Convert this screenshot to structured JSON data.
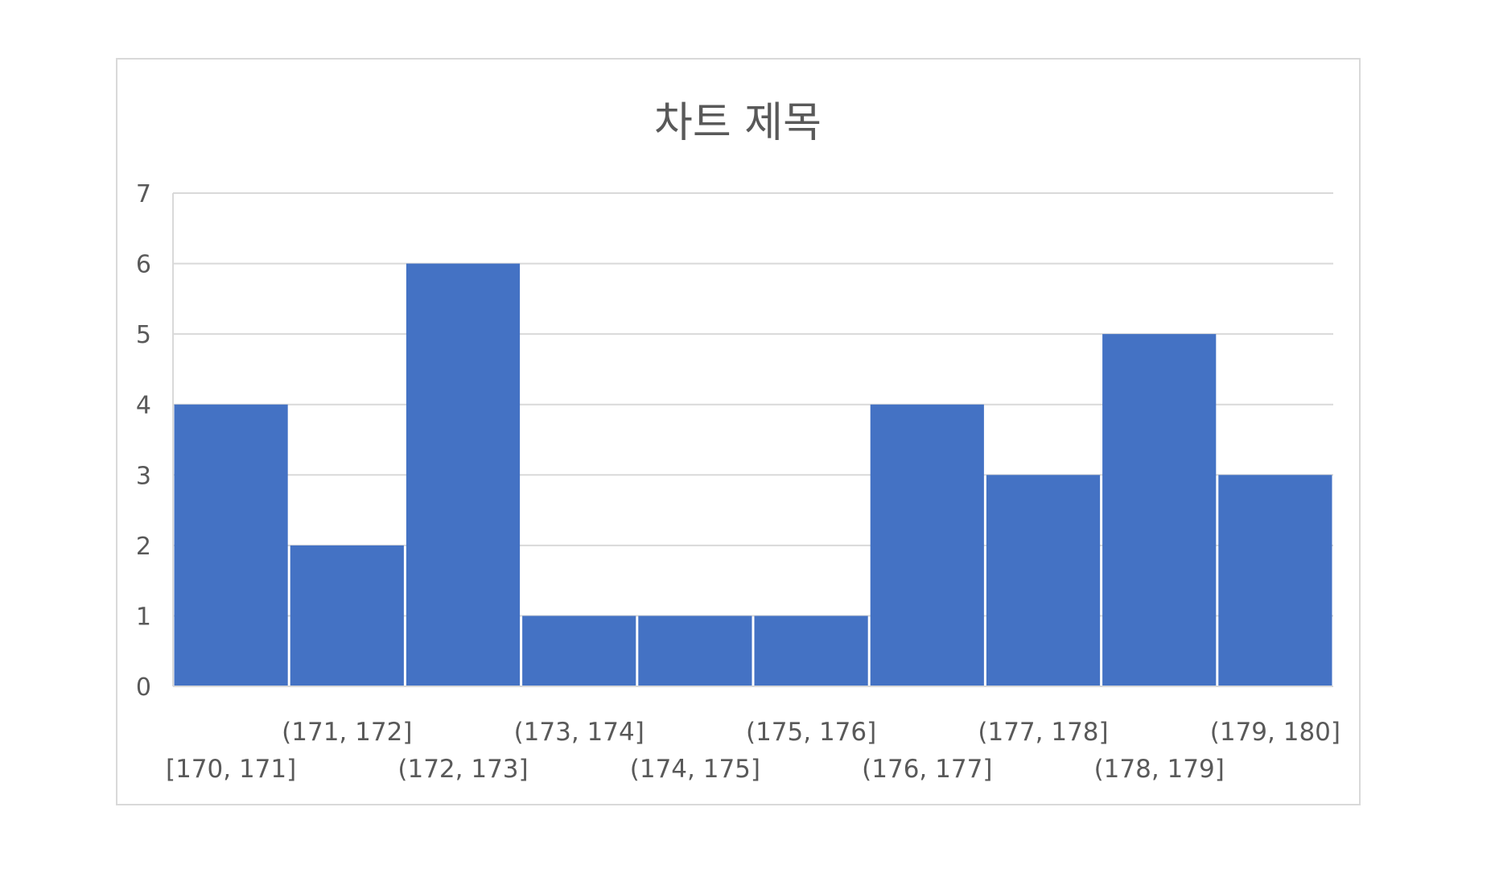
{
  "chart_data": {
    "type": "bar",
    "title": "차트 제목",
    "categories": [
      "[170, 171]",
      "(171, 172]",
      "(172, 173]",
      "(173, 174]",
      "(174, 175]",
      "(175, 176]",
      "(176, 177]",
      "(177, 178]",
      "(178, 179]",
      "(179, 180]"
    ],
    "values": [
      4,
      2,
      6,
      1,
      1,
      1,
      4,
      3,
      5,
      3
    ],
    "ylim": [
      0,
      7
    ],
    "yticks": [
      0,
      1,
      2,
      3,
      4,
      5,
      6,
      7
    ],
    "xlabel": "",
    "ylabel": "",
    "grid": true,
    "legend": "none",
    "colors": {
      "bar": "#4472C4",
      "grid": "#D9D9D9",
      "text": "#595959",
      "frame": "#D9D9D9"
    }
  }
}
